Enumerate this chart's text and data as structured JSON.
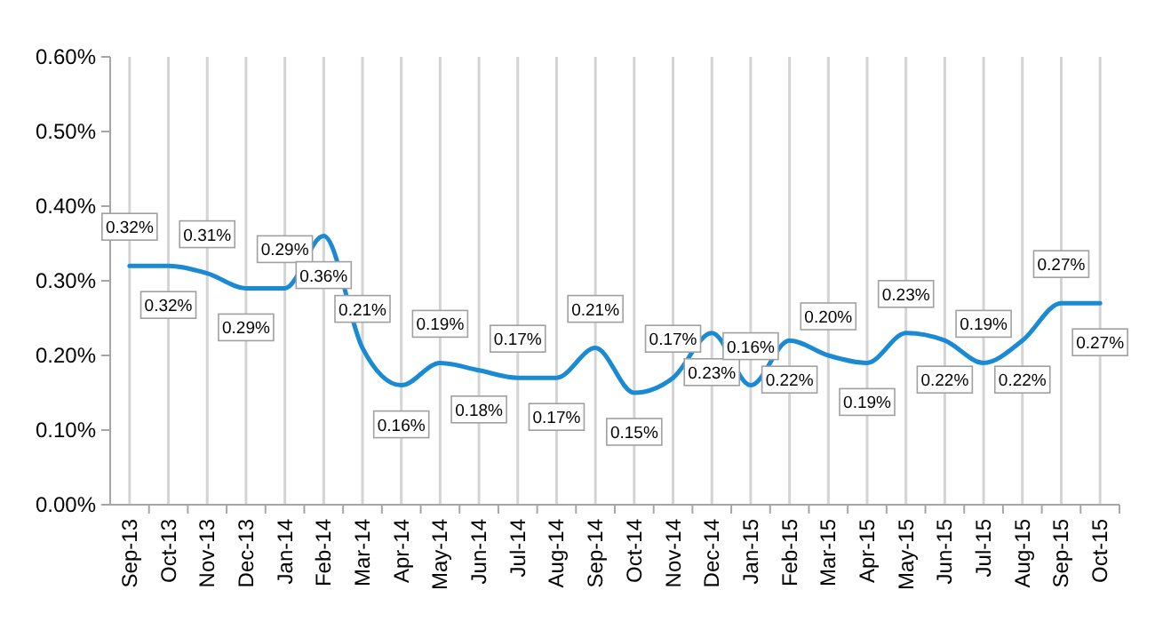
{
  "chart_data": {
    "type": "line",
    "categories": [
      "Sep-13",
      "Oct-13",
      "Nov-13",
      "Dec-13",
      "Jan-14",
      "Feb-14",
      "Mar-14",
      "Apr-14",
      "May-14",
      "Jun-14",
      "Jul-14",
      "Aug-14",
      "Sep-14",
      "Oct-14",
      "Nov-14",
      "Dec-14",
      "Jan-15",
      "Feb-15",
      "Mar-15",
      "Apr-15",
      "May-15",
      "Jun-15",
      "Jul-15",
      "Aug-15",
      "Sep-15",
      "Oct-15"
    ],
    "series": [
      {
        "color": "#1a8ad4",
        "values": [
          0.32,
          0.32,
          0.31,
          0.29,
          0.29,
          0.36,
          0.21,
          0.16,
          0.19,
          0.18,
          0.17,
          0.17,
          0.21,
          0.15,
          0.17,
          0.23,
          0.16,
          0.22,
          0.2,
          0.19,
          0.23,
          0.22,
          0.19,
          0.22,
          0.27,
          0.27
        ],
        "value_labels": [
          "0.32%",
          "0.32%",
          "0.31%",
          "0.29%",
          "0.29%",
          "0.36%",
          "0.21%",
          "0.16%",
          "0.19%",
          "0.18%",
          "0.17%",
          "0.17%",
          "0.21%",
          "0.15%",
          "0.17%",
          "0.23%",
          "0.16%",
          "0.22%",
          "0.20%",
          "0.19%",
          "0.23%",
          "0.22%",
          "0.19%",
          "0.22%",
          "0.27%",
          "0.27%"
        ]
      }
    ],
    "ylim": [
      0,
      0.6
    ],
    "yticks": [
      {
        "value": 0,
        "label": "0.00%"
      },
      {
        "value": 0.1,
        "label": "0.10%"
      },
      {
        "value": 0.2,
        "label": "0.20%"
      },
      {
        "value": 0.3,
        "label": "0.30%"
      },
      {
        "value": 0.4,
        "label": "0.40%"
      },
      {
        "value": 0.5,
        "label": "0.50%"
      },
      {
        "value": 0.6,
        "label": "0.60%"
      }
    ],
    "grid": "x",
    "marker": "none",
    "line_style": "solid"
  }
}
